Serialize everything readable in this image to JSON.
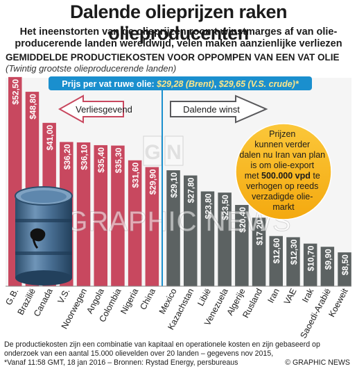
{
  "header": {
    "title": "Dalende olieprijzen raken olieproducenten",
    "subtitle": "Het ineenstorten van de olieprijzen roomt winstmarges af van olie-producerende landen wereldwijd, velen maken aanzienlijke verliezen"
  },
  "chart_heading": "GEMIDDELDE PRODUCTIEKOSTEN VOOR OPPOMPEN VAN EEN VAT OLIE",
  "chart_subheading": "(Twintig grootste olieproducerende landen)",
  "price_banner": {
    "label": "Prijs per vat ruwe olie: ",
    "value1": "$29,28 (Brent)",
    "sep": ", ",
    "value2": "$29,65 (V.S. crude)*"
  },
  "loss_label": "Verliesgevend",
  "profit_label": "Dalende winst",
  "callout": {
    "line1": "Prijzen",
    "line2": "kunnen verder",
    "line3": "dalen nu Iran van plan",
    "line4": "is om olie-export",
    "line5_pre": "met ",
    "line5_bold": "500.000 vpd",
    "line5_post": " te",
    "line6": "verhogen op reeds",
    "line7": "verzadigde olie-",
    "line8": "markt"
  },
  "watermark": "GRAPHIC NEWS",
  "footnote": {
    "line1": "De productiekosten zijn een combinatie van kapitaal en operationele kosten en zijn gebaseerd op",
    "line2": "onderzoek van een aantal 15.000 olievelden over 20 landen – gegevens nov 2015,",
    "line3": "*Vanaf 11:58 GMT, 18 jan 2016 – Bronnen: Rystad Energy, persbureaus"
  },
  "credit": "© GRAPHIC NEWS",
  "colors": {
    "loss_bar": "#c8485f",
    "profit_bar": "#5c6262",
    "banner": "#1a8fce",
    "callout": "#f7b81d",
    "arrow_red": "#c8485f",
    "arrow_grey": "#59595c"
  },
  "chart_data": {
    "type": "bar",
    "title": "GEMIDDELDE PRODUCTIEKOSTEN VOOR OPPOMPEN VAN EEN VAT OLIE",
    "subtitle": "(Twintig grootste olieproducerende landen)",
    "categories": [
      "G.B.",
      "Brazilië",
      "Canada",
      "V.S.",
      "Noorwegen",
      "Angola",
      "Colombia",
      "Nigeria",
      "China",
      "Mexico",
      "Kazachstan",
      "Libië",
      "Venezuela",
      "Algerije",
      "Rusland",
      "Iran",
      "VAE",
      "Irak",
      "Saoedi-Arabië",
      "Koeweit"
    ],
    "values": [
      52.5,
      48.8,
      41.0,
      36.2,
      36.1,
      35.4,
      35.3,
      31.6,
      29.9,
      29.1,
      27.8,
      23.8,
      23.5,
      20.4,
      17.2,
      12.6,
      12.3,
      10.7,
      9.9,
      8.5
    ],
    "value_labels": [
      "$52,50",
      "$48,80",
      "$41,00",
      "$36,20",
      "$36,10",
      "$35,40",
      "$35,30",
      "$31,60",
      "$29,90",
      "$29,10",
      "$27,80",
      "$23,80",
      "$23,50",
      "$20,40",
      "$17,20",
      "$12,60",
      "$12,30",
      "$10,70",
      "$9,90",
      "$8,50"
    ],
    "threshold": 29.65,
    "groups": [
      "loss",
      "loss",
      "loss",
      "loss",
      "loss",
      "loss",
      "loss",
      "loss",
      "loss",
      "profit",
      "profit",
      "profit",
      "profit",
      "profit",
      "profit",
      "profit",
      "profit",
      "profit",
      "profit",
      "profit"
    ],
    "ylim": [
      0,
      53
    ],
    "xlabel": "",
    "ylabel": ""
  }
}
